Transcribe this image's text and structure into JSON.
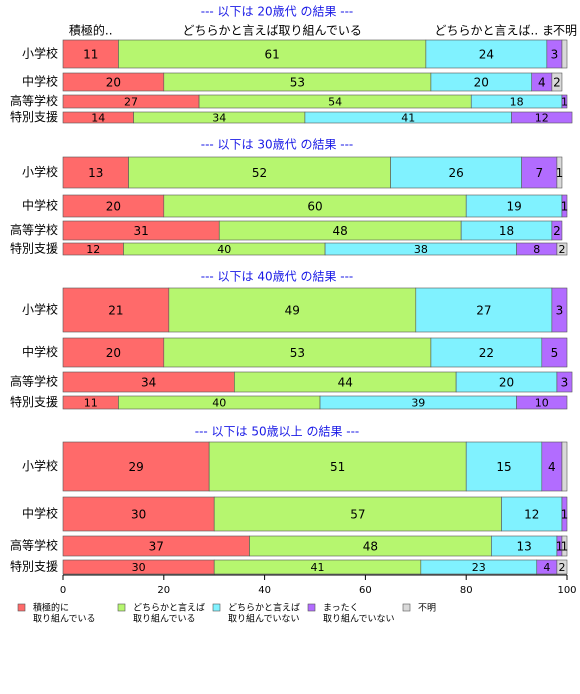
{
  "chart_data": {
    "type": "bar",
    "orientation": "horizontal",
    "stacked": true,
    "categories": [
      "小学校",
      "中学校",
      "高等学校",
      "特別支援"
    ],
    "series": [
      {
        "name": [
          "積極的に",
          "取り組んでいる"
        ],
        "color": "#ff6a6a"
      },
      {
        "name": [
          "どちらかと言えば",
          "取り組んでいる"
        ],
        "color": "#b6f66f"
      },
      {
        "name": [
          "どちらかと言えば",
          "取り組んでいない"
        ],
        "color": "#80f2ff"
      },
      {
        "name": [
          "まったく",
          "取り組んでいない"
        ],
        "color": "#b26cff"
      },
      {
        "name": [
          "不明"
        ],
        "color": "#d9d9d9"
      }
    ],
    "xlim": [
      0,
      100
    ],
    "xticks": [
      0,
      20,
      40,
      60,
      80,
      100
    ],
    "header": [
      "積極的..",
      "どちらかと言えば取り組んでいる",
      "どちらかと言えば..",
      "ま",
      "不明"
    ],
    "panels": [
      {
        "title": "--- 以下は 20歳代 の結果 ---",
        "values": [
          [
            11,
            61,
            24,
            3,
            1
          ],
          [
            20,
            53,
            20,
            4,
            2
          ],
          [
            27,
            54,
            18,
            1,
            0
          ],
          [
            14,
            34,
            41,
            12,
            0
          ]
        ],
        "value_labels": [
          [
            "11",
            "61",
            "24",
            "3",
            null
          ],
          [
            "20",
            "53",
            "20",
            "4",
            "2"
          ],
          [
            "27",
            "54",
            "18",
            "1",
            null
          ],
          [
            "14",
            "34",
            "41",
            "12",
            null
          ]
        ]
      },
      {
        "title": "--- 以下は 30歳代 の結果 ---",
        "values": [
          [
            13,
            52,
            26,
            7,
            1
          ],
          [
            20,
            60,
            19,
            1,
            0
          ],
          [
            31,
            48,
            18,
            2,
            0
          ],
          [
            12,
            40,
            38,
            8,
            2
          ]
        ],
        "value_labels": [
          [
            "13",
            "52",
            "26",
            "7",
            "1"
          ],
          [
            "20",
            "60",
            "19",
            "1",
            null
          ],
          [
            "31",
            "48",
            "18",
            "2",
            null
          ],
          [
            "12",
            "40",
            "38",
            "8",
            "2"
          ]
        ]
      },
      {
        "title": "--- 以下は 40歳代 の結果 ---",
        "values": [
          [
            21,
            49,
            27,
            3,
            0
          ],
          [
            20,
            53,
            22,
            5,
            0
          ],
          [
            34,
            44,
            20,
            3,
            0
          ],
          [
            11,
            40,
            39,
            10,
            0
          ]
        ],
        "value_labels": [
          [
            "21",
            "49",
            "27",
            "3",
            null
          ],
          [
            "20",
            "53",
            "22",
            "5",
            null
          ],
          [
            "34",
            "44",
            "20",
            "3",
            null
          ],
          [
            "11",
            "40",
            "39",
            "10",
            null
          ]
        ]
      },
      {
        "title": "--- 以下は 50歳以上 の結果 ---",
        "values": [
          [
            29,
            51,
            15,
            4,
            1
          ],
          [
            30,
            57,
            12,
            1,
            0
          ],
          [
            37,
            48,
            13,
            1,
            1
          ],
          [
            30,
            41,
            23,
            4,
            2
          ]
        ],
        "value_labels": [
          [
            "29",
            "51",
            "15",
            "4",
            null
          ],
          [
            "30",
            "57",
            "12",
            "1",
            null
          ],
          [
            "37",
            "48",
            "13",
            "1",
            "1"
          ],
          [
            "30",
            "41",
            "23",
            "4",
            "2"
          ]
        ]
      }
    ]
  }
}
